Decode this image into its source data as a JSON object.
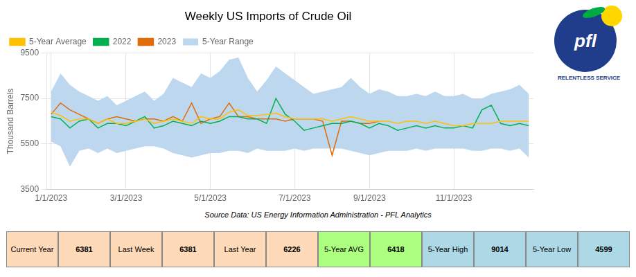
{
  "chart_data": {
    "type": "line",
    "title": "Weekly US Imports of Crude Oil",
    "y_label": "Thousand Barrels",
    "categories": [
      "1/1/2023",
      null,
      null,
      null,
      null,
      null,
      null,
      null,
      "3/1/2023",
      null,
      null,
      null,
      null,
      null,
      null,
      null,
      null,
      "5/1/2023",
      null,
      null,
      null,
      null,
      null,
      null,
      null,
      null,
      "7/1/2023",
      null,
      null,
      null,
      null,
      null,
      null,
      null,
      "9/1/2023",
      null,
      null,
      null,
      null,
      null,
      null,
      null,
      null,
      "11/1/2023",
      null,
      null,
      null,
      null,
      null,
      null,
      null,
      null
    ],
    "series": [
      {
        "name": "5-Year Range",
        "type": "range",
        "color": "#BDD7EE",
        "low": [
          5600,
          5400,
          4500,
          5200,
          5300,
          5100,
          5300,
          5100,
          5200,
          5300,
          5400,
          5400,
          5300,
          5100,
          5000,
          4900,
          5000,
          5100,
          5100,
          5200,
          5200,
          5100,
          5300,
          5200,
          5200,
          5200,
          5300,
          5200,
          5300,
          5300,
          5300,
          5300,
          5200,
          5100,
          5000,
          5100,
          5200,
          5200,
          5200,
          5300,
          5200,
          5300,
          5300,
          5300,
          5300,
          5200,
          5200,
          5300,
          5300,
          5200,
          5300,
          4900
        ],
        "high": [
          7800,
          8600,
          8100,
          7800,
          7600,
          7400,
          7600,
          7200,
          7400,
          7600,
          7800,
          7400,
          7700,
          8400,
          8200,
          8000,
          8600,
          8400,
          8700,
          9200,
          9300,
          8400,
          7800,
          8300,
          8900,
          8600,
          8300,
          8000,
          7700,
          7800,
          7900,
          8000,
          8400,
          8000,
          7700,
          7900,
          7800,
          7600,
          7600,
          7700,
          7600,
          7800,
          7600,
          7600,
          7700,
          7500,
          7500,
          7700,
          7800,
          7900,
          8100,
          7700
        ]
      },
      {
        "name": "5-Year Average",
        "color": "#FFC000",
        "values": [
          6900,
          6750,
          6500,
          6600,
          6600,
          6400,
          6600,
          6400,
          6400,
          6500,
          6600,
          6400,
          6500,
          6600,
          6500,
          6400,
          6700,
          6600,
          6600,
          6900,
          7000,
          6750,
          6750,
          6800,
          6850,
          6700,
          6600,
          6600,
          6600,
          6600,
          6500,
          6600,
          6700,
          6600,
          6500,
          6500,
          6500,
          6400,
          6500,
          6500,
          6400,
          6500,
          6400,
          6300,
          6300,
          6400,
          6400,
          6400,
          6500,
          6500,
          6500,
          6500
        ]
      },
      {
        "name": "2022",
        "color": "#00B050",
        "values": [
          6700,
          6600,
          6200,
          6500,
          6600,
          6200,
          6400,
          6400,
          6300,
          6500,
          6700,
          6200,
          6300,
          6500,
          6400,
          6300,
          6500,
          6400,
          6500,
          6700,
          6700,
          6600,
          6600,
          6400,
          7500,
          6800,
          6500,
          6100,
          6200,
          6300,
          6400,
          6400,
          6500,
          6400,
          6200,
          6400,
          6300,
          6100,
          6200,
          6300,
          6200,
          6300,
          6200,
          6200,
          6300,
          6200,
          7000,
          7200,
          6400,
          6300,
          6400,
          6300
        ]
      },
      {
        "name": "2023",
        "color": "#E26B0A",
        "values": [
          6800,
          7300,
          7000,
          6800,
          6600,
          6400,
          6600,
          6700,
          6600,
          6500,
          6600,
          6600,
          6500,
          6700,
          6500,
          7300,
          6400,
          6600,
          6700,
          7300,
          6700,
          6700,
          6600,
          6600,
          6600,
          6500,
          6600,
          6600,
          6600,
          6500,
          5000,
          6500,
          6500,
          6400,
          6400,
          6500,
          null,
          null,
          null,
          null,
          null,
          null,
          null,
          null,
          null,
          null,
          null,
          null,
          null,
          null,
          null,
          null
        ]
      }
    ],
    "ylim": [
      3500,
      9500
    ],
    "yticks": [
      3500,
      5500,
      7500,
      9500
    ],
    "grid": true,
    "legend": "upper left",
    "source": "Source Data: US Energy Information Administration - PFL Analytics",
    "table": [
      {
        "label": "Current Year",
        "value": 6381,
        "color": "#FFDAB9"
      },
      {
        "label": "Last Week",
        "value": 6381,
        "color": "#FFDAB9"
      },
      {
        "label": "Last Year",
        "value": 6226,
        "color": "#FFDAB9"
      },
      {
        "label": "5-Year AVG",
        "value": 6418,
        "color": "#ADFF7F"
      },
      {
        "label": "5-Year High",
        "value": 9014,
        "color": "#ADD8E6"
      },
      {
        "label": "5-Year Low",
        "value": 4599,
        "color": "#ADD8E6"
      }
    ],
    "logo": [
      "pfl",
      "RELENTLESS SERVICE"
    ]
  }
}
